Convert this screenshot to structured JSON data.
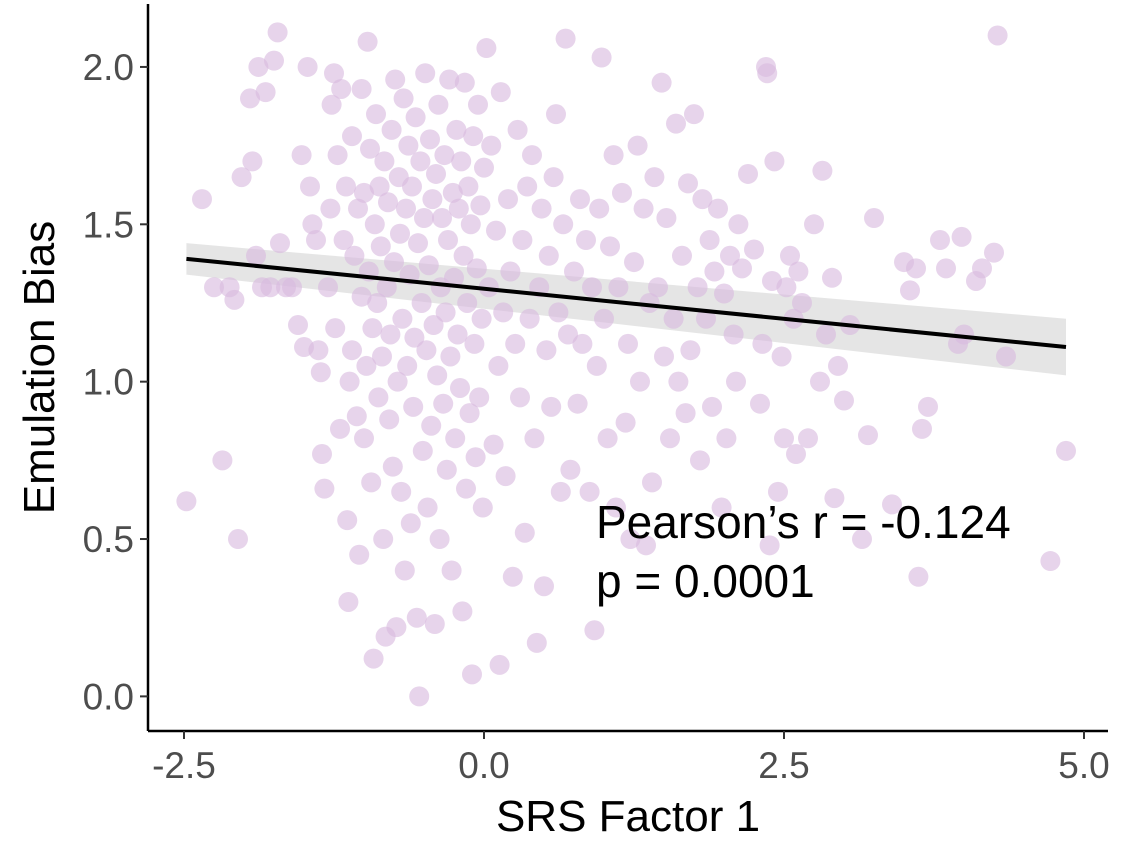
{
  "chart_data": {
    "type": "scatter",
    "xlabel": "SRS Factor 1",
    "ylabel": "Emulation Bias",
    "xlim": [
      -2.8,
      5.2
    ],
    "ylim": [
      -0.11,
      2.2
    ],
    "xticks": [
      -2.5,
      0,
      2.5,
      5
    ],
    "xtick_labels": [
      "-2.5",
      "0.0",
      "2.5",
      "5.0"
    ],
    "yticks": [
      0,
      0.5,
      1,
      1.5,
      2
    ],
    "ytick_labels": [
      "0.0",
      "0.5",
      "1.0",
      "1.5",
      "2.0"
    ],
    "grid": false,
    "point_color": "#d9b9de",
    "point_opacity": 0.62,
    "line_color": "#000000",
    "band_color": "#d4d4d4",
    "annotation": {
      "line1": "Pearson’s r = -0.124",
      "line2": "p = 0.0001"
    },
    "fit": {
      "x": [
        -2.48,
        4.85
      ],
      "y": [
        1.39,
        1.11
      ],
      "band_lower": [
        1.34,
        1.02
      ],
      "band_upper": [
        1.44,
        1.2
      ]
    },
    "points": [
      [
        -2.48,
        0.62
      ],
      [
        -2.35,
        1.58
      ],
      [
        -2.25,
        1.3
      ],
      [
        -2.18,
        0.75
      ],
      [
        -2.12,
        1.3
      ],
      [
        -2.05,
        0.5
      ],
      [
        -2.08,
        1.26
      ],
      [
        -2.02,
        1.65
      ],
      [
        -1.95,
        1.9
      ],
      [
        -1.93,
        1.7
      ],
      [
        -1.9,
        1.4
      ],
      [
        -1.88,
        2.0
      ],
      [
        -1.85,
        1.3
      ],
      [
        -1.82,
        1.92
      ],
      [
        -1.78,
        1.3
      ],
      [
        -1.75,
        2.02
      ],
      [
        -1.72,
        2.11
      ],
      [
        -1.7,
        1.44
      ],
      [
        -1.65,
        1.3
      ],
      [
        -1.6,
        1.3
      ],
      [
        -1.55,
        1.18
      ],
      [
        -1.52,
        1.72
      ],
      [
        -1.5,
        1.11
      ],
      [
        -1.47,
        2.0
      ],
      [
        -1.45,
        1.62
      ],
      [
        -1.43,
        1.5
      ],
      [
        -1.4,
        1.45
      ],
      [
        -1.38,
        1.1
      ],
      [
        -1.36,
        1.03
      ],
      [
        -1.35,
        0.77
      ],
      [
        -1.33,
        0.66
      ],
      [
        -1.3,
        1.3
      ],
      [
        -1.28,
        1.55
      ],
      [
        -1.27,
        1.88
      ],
      [
        -1.25,
        1.98
      ],
      [
        -1.24,
        1.17
      ],
      [
        -1.22,
        1.72
      ],
      [
        -1.2,
        0.85
      ],
      [
        -1.19,
        1.93
      ],
      [
        -1.17,
        1.45
      ],
      [
        -1.15,
        1.62
      ],
      [
        -1.14,
        0.56
      ],
      [
        -1.13,
        0.3
      ],
      [
        -1.12,
        1.0
      ],
      [
        -1.1,
        1.78
      ],
      [
        -1.1,
        1.1
      ],
      [
        -1.08,
        1.4
      ],
      [
        -1.06,
        0.89
      ],
      [
        -1.05,
        1.55
      ],
      [
        -1.04,
        0.45
      ],
      [
        -1.02,
        1.27
      ],
      [
        -1.02,
        1.93
      ],
      [
        -1.0,
        1.6
      ],
      [
        -1.0,
        0.82
      ],
      [
        -0.98,
        1.05
      ],
      [
        -0.97,
        2.08
      ],
      [
        -0.96,
        1.35
      ],
      [
        -0.95,
        1.74
      ],
      [
        -0.94,
        0.68
      ],
      [
        -0.93,
        1.17
      ],
      [
        -0.92,
        0.12
      ],
      [
        -0.91,
        1.5
      ],
      [
        -0.9,
        1.85
      ],
      [
        -0.89,
        1.25
      ],
      [
        -0.88,
        0.95
      ],
      [
        -0.87,
        1.62
      ],
      [
        -0.86,
        1.43
      ],
      [
        -0.85,
        1.08
      ],
      [
        -0.84,
        0.5
      ],
      [
        -0.83,
        1.7
      ],
      [
        -0.82,
        0.19
      ],
      [
        -0.81,
        1.3
      ],
      [
        -0.8,
        1.57
      ],
      [
        -0.79,
        0.88
      ],
      [
        -0.78,
        1.15
      ],
      [
        -0.77,
        1.8
      ],
      [
        -0.76,
        0.73
      ],
      [
        -0.75,
        1.38
      ],
      [
        -0.74,
        1.96
      ],
      [
        -0.73,
        0.22
      ],
      [
        -0.72,
        1.0
      ],
      [
        -0.71,
        1.65
      ],
      [
        -0.7,
        1.47
      ],
      [
        -0.69,
        0.65
      ],
      [
        -0.68,
        1.2
      ],
      [
        -0.67,
        1.9
      ],
      [
        -0.66,
        0.4
      ],
      [
        -0.65,
        1.55
      ],
      [
        -0.64,
        1.05
      ],
      [
        -0.63,
        1.75
      ],
      [
        -0.62,
        1.34
      ],
      [
        -0.61,
        0.55
      ],
      [
        -0.6,
        1.62
      ],
      [
        -0.59,
        0.92
      ],
      [
        -0.58,
        1.14
      ],
      [
        -0.57,
        1.84
      ],
      [
        -0.56,
        0.25
      ],
      [
        -0.55,
        1.44
      ],
      [
        -0.54,
        0.0
      ],
      [
        -0.53,
        1.7
      ],
      [
        -0.52,
        1.25
      ],
      [
        -0.51,
        0.78
      ],
      [
        -0.5,
        1.52
      ],
      [
        -0.49,
        1.98
      ],
      [
        -0.48,
        1.1
      ],
      [
        -0.47,
        0.6
      ],
      [
        -0.46,
        1.37
      ],
      [
        -0.45,
        1.77
      ],
      [
        -0.44,
        0.86
      ],
      [
        -0.43,
        1.58
      ],
      [
        -0.42,
        1.18
      ],
      [
        -0.41,
        0.23
      ],
      [
        -0.4,
        1.66
      ],
      [
        -0.39,
        1.02
      ],
      [
        -0.38,
        1.88
      ],
      [
        -0.37,
        0.5
      ],
      [
        -0.36,
        1.3
      ],
      [
        -0.35,
        1.52
      ],
      [
        -0.34,
        0.93
      ],
      [
        -0.33,
        1.72
      ],
      [
        -0.32,
        1.22
      ],
      [
        -0.31,
        0.72
      ],
      [
        -0.3,
        1.45
      ],
      [
        -0.29,
        1.96
      ],
      [
        -0.28,
        1.08
      ],
      [
        -0.27,
        0.4
      ],
      [
        -0.26,
        1.6
      ],
      [
        -0.25,
        1.33
      ],
      [
        -0.24,
        0.82
      ],
      [
        -0.23,
        1.8
      ],
      [
        -0.22,
        1.15
      ],
      [
        -0.21,
        1.55
      ],
      [
        -0.2,
        0.98
      ],
      [
        -0.19,
        1.7
      ],
      [
        -0.18,
        0.27
      ],
      [
        -0.17,
        1.4
      ],
      [
        -0.16,
        1.95
      ],
      [
        -0.15,
        0.66
      ],
      [
        -0.14,
        1.25
      ],
      [
        -0.13,
        1.62
      ],
      [
        -0.12,
        0.9
      ],
      [
        -0.11,
        1.5
      ],
      [
        -0.1,
        0.07
      ],
      [
        -0.09,
        1.78
      ],
      [
        -0.08,
        1.12
      ],
      [
        -0.07,
        0.76
      ],
      [
        -0.06,
        1.36
      ],
      [
        -0.05,
        1.88
      ],
      [
        -0.04,
        0.95
      ],
      [
        -0.03,
        1.56
      ],
      [
        -0.02,
        1.2
      ],
      [
        -0.01,
        0.6
      ],
      [
        0.0,
        1.68
      ],
      [
        0.02,
        2.06
      ],
      [
        0.04,
        1.3
      ],
      [
        0.06,
        1.75
      ],
      [
        0.08,
        0.8
      ],
      [
        0.1,
        1.48
      ],
      [
        0.12,
        1.05
      ],
      [
        0.13,
        0.1
      ],
      [
        0.14,
        1.92
      ],
      [
        0.16,
        1.22
      ],
      [
        0.18,
        0.7
      ],
      [
        0.2,
        1.58
      ],
      [
        0.22,
        1.35
      ],
      [
        0.24,
        0.38
      ],
      [
        0.26,
        1.12
      ],
      [
        0.28,
        1.8
      ],
      [
        0.3,
        0.95
      ],
      [
        0.32,
        1.45
      ],
      [
        0.34,
        0.52
      ],
      [
        0.36,
        1.62
      ],
      [
        0.38,
        1.2
      ],
      [
        0.4,
        1.72
      ],
      [
        0.42,
        0.82
      ],
      [
        0.44,
        0.17
      ],
      [
        0.46,
        1.3
      ],
      [
        0.48,
        1.55
      ],
      [
        0.5,
        0.35
      ],
      [
        0.52,
        1.1
      ],
      [
        0.54,
        1.4
      ],
      [
        0.56,
        0.92
      ],
      [
        0.58,
        1.65
      ],
      [
        0.6,
        1.85
      ],
      [
        0.62,
        1.22
      ],
      [
        0.64,
        0.65
      ],
      [
        0.66,
        1.5
      ],
      [
        0.68,
        2.09
      ],
      [
        0.7,
        1.15
      ],
      [
        0.72,
        0.72
      ],
      [
        0.75,
        1.35
      ],
      [
        0.78,
        0.93
      ],
      [
        0.8,
        1.58
      ],
      [
        0.82,
        1.12
      ],
      [
        0.85,
        1.45
      ],
      [
        0.88,
        0.65
      ],
      [
        0.9,
        1.3
      ],
      [
        0.92,
        0.21
      ],
      [
        0.94,
        1.05
      ],
      [
        0.96,
        1.55
      ],
      [
        0.98,
        2.03
      ],
      [
        1.0,
        1.2
      ],
      [
        1.03,
        0.82
      ],
      [
        1.05,
        1.43
      ],
      [
        1.08,
        1.72
      ],
      [
        1.1,
        0.6
      ],
      [
        1.12,
        1.3
      ],
      [
        1.15,
        1.6
      ],
      [
        1.18,
        0.87
      ],
      [
        1.2,
        1.12
      ],
      [
        1.22,
        0.5
      ],
      [
        1.25,
        1.38
      ],
      [
        1.28,
        1.75
      ],
      [
        1.3,
        1.0
      ],
      [
        1.33,
        1.55
      ],
      [
        1.35,
        0.48
      ],
      [
        1.38,
        1.25
      ],
      [
        1.4,
        0.68
      ],
      [
        1.42,
        1.65
      ],
      [
        1.45,
        1.3
      ],
      [
        1.48,
        1.95
      ],
      [
        1.5,
        1.08
      ],
      [
        1.52,
        1.52
      ],
      [
        1.55,
        0.82
      ],
      [
        1.58,
        1.2
      ],
      [
        1.6,
        1.82
      ],
      [
        1.62,
        1.0
      ],
      [
        1.65,
        1.4
      ],
      [
        1.68,
        0.9
      ],
      [
        1.7,
        1.63
      ],
      [
        1.72,
        1.1
      ],
      [
        1.75,
        1.85
      ],
      [
        1.78,
        1.3
      ],
      [
        1.8,
        0.75
      ],
      [
        1.82,
        1.58
      ],
      [
        1.85,
        1.2
      ],
      [
        1.88,
        1.45
      ],
      [
        1.9,
        0.92
      ],
      [
        1.92,
        1.35
      ],
      [
        1.95,
        1.55
      ],
      [
        1.98,
        0.6
      ],
      [
        2.0,
        1.28
      ],
      [
        2.02,
        0.82
      ],
      [
        2.05,
        1.4
      ],
      [
        2.08,
        1.15
      ],
      [
        2.1,
        1.0
      ],
      [
        2.12,
        1.5
      ],
      [
        2.15,
        1.36
      ],
      [
        2.2,
        1.66
      ],
      [
        2.25,
        1.42
      ],
      [
        2.3,
        0.93
      ],
      [
        2.32,
        1.12
      ],
      [
        2.35,
        2.0
      ],
      [
        2.36,
        1.98
      ],
      [
        2.38,
        0.48
      ],
      [
        2.4,
        1.32
      ],
      [
        2.42,
        1.7
      ],
      [
        2.45,
        0.65
      ],
      [
        2.48,
        1.08
      ],
      [
        2.5,
        0.82
      ],
      [
        2.52,
        1.3
      ],
      [
        2.55,
        1.4
      ],
      [
        2.58,
        1.2
      ],
      [
        2.6,
        0.77
      ],
      [
        2.62,
        1.35
      ],
      [
        2.65,
        1.25
      ],
      [
        2.7,
        0.82
      ],
      [
        2.75,
        1.5
      ],
      [
        2.8,
        1.0
      ],
      [
        2.82,
        1.67
      ],
      [
        2.85,
        1.15
      ],
      [
        2.9,
        1.33
      ],
      [
        2.92,
        0.63
      ],
      [
        2.95,
        1.05
      ],
      [
        3.0,
        0.94
      ],
      [
        3.05,
        1.18
      ],
      [
        3.15,
        0.5
      ],
      [
        3.2,
        0.83
      ],
      [
        3.25,
        1.52
      ],
      [
        3.4,
        0.61
      ],
      [
        3.5,
        1.38
      ],
      [
        3.55,
        1.29
      ],
      [
        3.6,
        1.36
      ],
      [
        3.62,
        0.38
      ],
      [
        3.65,
        0.85
      ],
      [
        3.7,
        0.92
      ],
      [
        3.8,
        1.45
      ],
      [
        3.85,
        1.36
      ],
      [
        3.95,
        1.12
      ],
      [
        3.98,
        1.46
      ],
      [
        4.0,
        1.15
      ],
      [
        4.1,
        1.32
      ],
      [
        4.15,
        1.36
      ],
      [
        4.25,
        1.41
      ],
      [
        4.28,
        2.1
      ],
      [
        4.35,
        1.08
      ],
      [
        4.72,
        0.43
      ],
      [
        4.85,
        0.78
      ]
    ]
  }
}
